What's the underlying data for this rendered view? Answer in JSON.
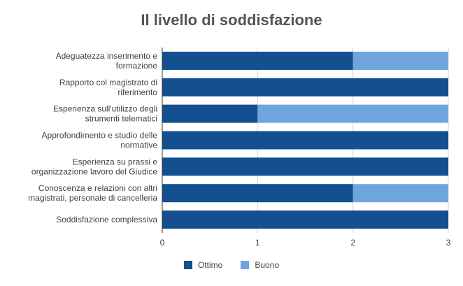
{
  "chart_data": {
    "type": "bar",
    "orientation": "horizontal",
    "stacked": true,
    "title": "Il livello di soddisfazione",
    "xlabel": "",
    "ylabel": "",
    "xlim": [
      0,
      3
    ],
    "xticks": [
      "0",
      "1",
      "2",
      "3"
    ],
    "grid": true,
    "legend_position": "bottom",
    "categories": [
      [
        "Adeguatezza inserimento e",
        "formazione"
      ],
      [
        "Rapporto col magistrato di",
        "riferimento"
      ],
      [
        "Esperienza sull'utilizzo degli",
        "strumenti telematici"
      ],
      [
        "Approfondimento e studio delle",
        "normative"
      ],
      [
        "Esperienza su prassi e",
        "organizzazione lavoro del Giudice"
      ],
      [
        "Conoscenza e relazioni con altri",
        "magistrati, personale di cancelleria"
      ],
      [
        "Soddisfazione complessiva"
      ]
    ],
    "series": [
      {
        "name": "Ottimo",
        "color": "#14508f",
        "values": [
          2,
          3,
          1,
          3,
          3,
          2,
          3
        ]
      },
      {
        "name": "Buono",
        "color": "#6fa5dd",
        "values": [
          1,
          0,
          2,
          0,
          0,
          1,
          0
        ]
      }
    ]
  }
}
